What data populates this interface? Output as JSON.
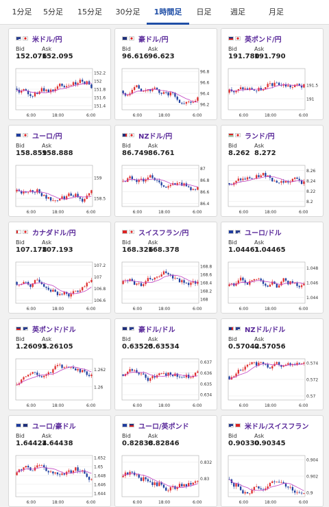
{
  "tabs": [
    {
      "label": "1分足",
      "active": false
    },
    {
      "label": "5分足",
      "active": false
    },
    {
      "label": "15分足",
      "active": false
    },
    {
      "label": "30分足",
      "active": false
    },
    {
      "label": "1時間足",
      "active": true
    },
    {
      "label": "日足",
      "active": false
    },
    {
      "label": "週足",
      "active": false
    },
    {
      "label": "月足",
      "active": false
    }
  ],
  "labels": {
    "bid": "Bid",
    "ask": "Ask"
  },
  "colors": {
    "up": "#e03030",
    "down": "#2040a0",
    "ma": "#c040c0",
    "title": "#5a2a9a",
    "active_tab": "#1f4ea6"
  },
  "cards": [
    {
      "pair": "米ドル/円",
      "flags": [
        "US",
        "JP"
      ],
      "bid": "152.076",
      "ask": "152.095",
      "x_ticks": [
        "6:00",
        "18:00",
        "6:00"
      ],
      "y_ticks": [
        "152.2",
        "152",
        "151.8",
        "151.6",
        "151.4"
      ],
      "chart_data": {
        "type": "candlestick",
        "ylim": [
          151.3,
          152.3
        ],
        "seed": 1
      }
    },
    {
      "pair": "豪ドル/円",
      "flags": [
        "AU",
        "JP"
      ],
      "bid": "96.616",
      "ask": "96.623",
      "x_ticks": [
        "6:00",
        "18:00",
        "6:00"
      ],
      "y_ticks": [
        "96.8",
        "96.6",
        "96.4",
        "96.2"
      ],
      "chart_data": {
        "type": "candlestick",
        "ylim": [
          96.1,
          96.85
        ],
        "seed": 2
      }
    },
    {
      "pair": "英ポンド/円",
      "flags": [
        "GB",
        "JP"
      ],
      "bid": "191.780",
      "ask": "191.790",
      "x_ticks": [
        "6:00",
        "18:00",
        "6:00"
      ],
      "y_ticks": [
        "191.5",
        "191"
      ],
      "chart_data": {
        "type": "candlestick",
        "ylim": [
          190.6,
          192.1
        ],
        "seed": 3
      }
    },
    {
      "pair": "ユーロ/円",
      "flags": [
        "EU",
        "JP"
      ],
      "bid": "158.859",
      "ask": "158.888",
      "x_ticks": [
        "6:00",
        "18:00",
        "6:00"
      ],
      "y_ticks": [
        "159",
        "158.5"
      ],
      "chart_data": {
        "type": "candlestick",
        "ylim": [
          158.3,
          159.3
        ],
        "seed": 4
      }
    },
    {
      "pair": "NZドル/円",
      "flags": [
        "NZ",
        "JP"
      ],
      "bid": "86.749",
      "ask": "86.761",
      "x_ticks": [
        "6:00",
        "18:00",
        "6:00"
      ],
      "y_ticks": [
        "87",
        "86.8",
        "86.6",
        "86.4"
      ],
      "chart_data": {
        "type": "candlestick",
        "ylim": [
          86.35,
          87.05
        ],
        "seed": 5
      }
    },
    {
      "pair": "ランド/円",
      "flags": [
        "ZA",
        "JP"
      ],
      "bid": "8.262",
      "ask": "8.272",
      "x_ticks": [
        "6:00",
        "18:00",
        "6:00"
      ],
      "y_ticks": [
        "8.26",
        "8.24",
        "8.22",
        "8.2"
      ],
      "chart_data": {
        "type": "candlestick",
        "ylim": [
          8.19,
          8.27
        ],
        "seed": 6
      }
    },
    {
      "pair": "カナダドル/円",
      "flags": [
        "CA",
        "JP"
      ],
      "bid": "107.178",
      "ask": "107.193",
      "x_ticks": [
        "6:00",
        "18:00",
        "6:00"
      ],
      "y_ticks": [
        "107.2",
        "107",
        "106.8",
        "106.6"
      ],
      "chart_data": {
        "type": "candlestick",
        "ylim": [
          106.55,
          107.25
        ],
        "seed": 7
      }
    },
    {
      "pair": "スイスフラン/円",
      "flags": [
        "CH",
        "JP"
      ],
      "bid": "168.326",
      "ask": "168.378",
      "x_ticks": [
        "6:00",
        "18:00",
        "6:00"
      ],
      "y_ticks": [
        "168.8",
        "168.6",
        "168.4",
        "168.2",
        "168"
      ],
      "chart_data": {
        "type": "candlestick",
        "ylim": [
          167.9,
          168.9
        ],
        "seed": 8
      }
    },
    {
      "pair": "ユーロ/ドル",
      "flags": [
        "EU",
        "US"
      ],
      "bid": "1.04461",
      "ask": "1.04465",
      "x_ticks": [
        "6:00",
        "18:00",
        "6:00"
      ],
      "y_ticks": [
        "1.048",
        "1.046",
        "1.044"
      ],
      "chart_data": {
        "type": "candlestick",
        "ylim": [
          1.0432,
          1.0488
        ],
        "seed": 9
      }
    },
    {
      "pair": "英ポンド/ドル",
      "flags": [
        "GB",
        "US"
      ],
      "bid": "1.26095",
      "ask": "1.26105",
      "x_ticks": [
        "6:00",
        "18:00",
        "6:00"
      ],
      "y_ticks": [
        "1.262",
        "1.26"
      ],
      "chart_data": {
        "type": "candlestick",
        "ylim": [
          1.2585,
          1.2632
        ],
        "seed": 10
      }
    },
    {
      "pair": "豪ドル/ドル",
      "flags": [
        "AU",
        "US"
      ],
      "bid": "0.63525",
      "ask": "0.63534",
      "x_ticks": [
        "6:00",
        "18:00",
        "6:00"
      ],
      "y_ticks": [
        "0.637",
        "0.636",
        "0.635",
        "0.634"
      ],
      "chart_data": {
        "type": "candlestick",
        "ylim": [
          0.6335,
          0.6373
        ],
        "seed": 11
      }
    },
    {
      "pair": "NZドル/ドル",
      "flags": [
        "NZ",
        "US"
      ],
      "bid": "0.57042",
      "ask": "0.57056",
      "x_ticks": [
        "6:00",
        "18:00",
        "6:00"
      ],
      "y_ticks": [
        "0.574",
        "0.572",
        "0.57"
      ],
      "chart_data": {
        "type": "candlestick",
        "ylim": [
          0.5695,
          0.5745
        ],
        "seed": 12
      }
    },
    {
      "pair": "ユーロ/豪ドル",
      "flags": [
        "EU",
        "AU"
      ],
      "bid": "1.64424",
      "ask": "1.64438",
      "x_ticks": [
        "6:00",
        "18:00",
        "6:00"
      ],
      "y_ticks": [
        "1.652",
        "1.65",
        "1.648",
        "1.646",
        "1.644"
      ],
      "chart_data": {
        "type": "candlestick",
        "ylim": [
          1.6432,
          1.6525
        ],
        "seed": 13
      }
    },
    {
      "pair": "ユーロ/英ポンド",
      "flags": [
        "EU",
        "GB"
      ],
      "bid": "0.82838",
      "ask": "0.82846",
      "x_ticks": [
        "6:00",
        "18:00",
        "6:00"
      ],
      "y_ticks": [
        "0.832",
        "0.83"
      ],
      "chart_data": {
        "type": "candlestick",
        "ylim": [
          0.8278,
          0.8328
        ],
        "seed": 14
      }
    },
    {
      "pair": "米ドル/スイスフラン",
      "flags": [
        "US",
        "CH"
      ],
      "bid": "0.90330",
      "ask": "0.90345",
      "x_ticks": [
        "6:00",
        "18:00",
        "6:00"
      ],
      "y_ticks": [
        "0.904",
        "0.902",
        "0.9"
      ],
      "chart_data": {
        "type": "candlestick",
        "ylim": [
          0.8995,
          0.9045
        ],
        "seed": 15
      }
    }
  ]
}
